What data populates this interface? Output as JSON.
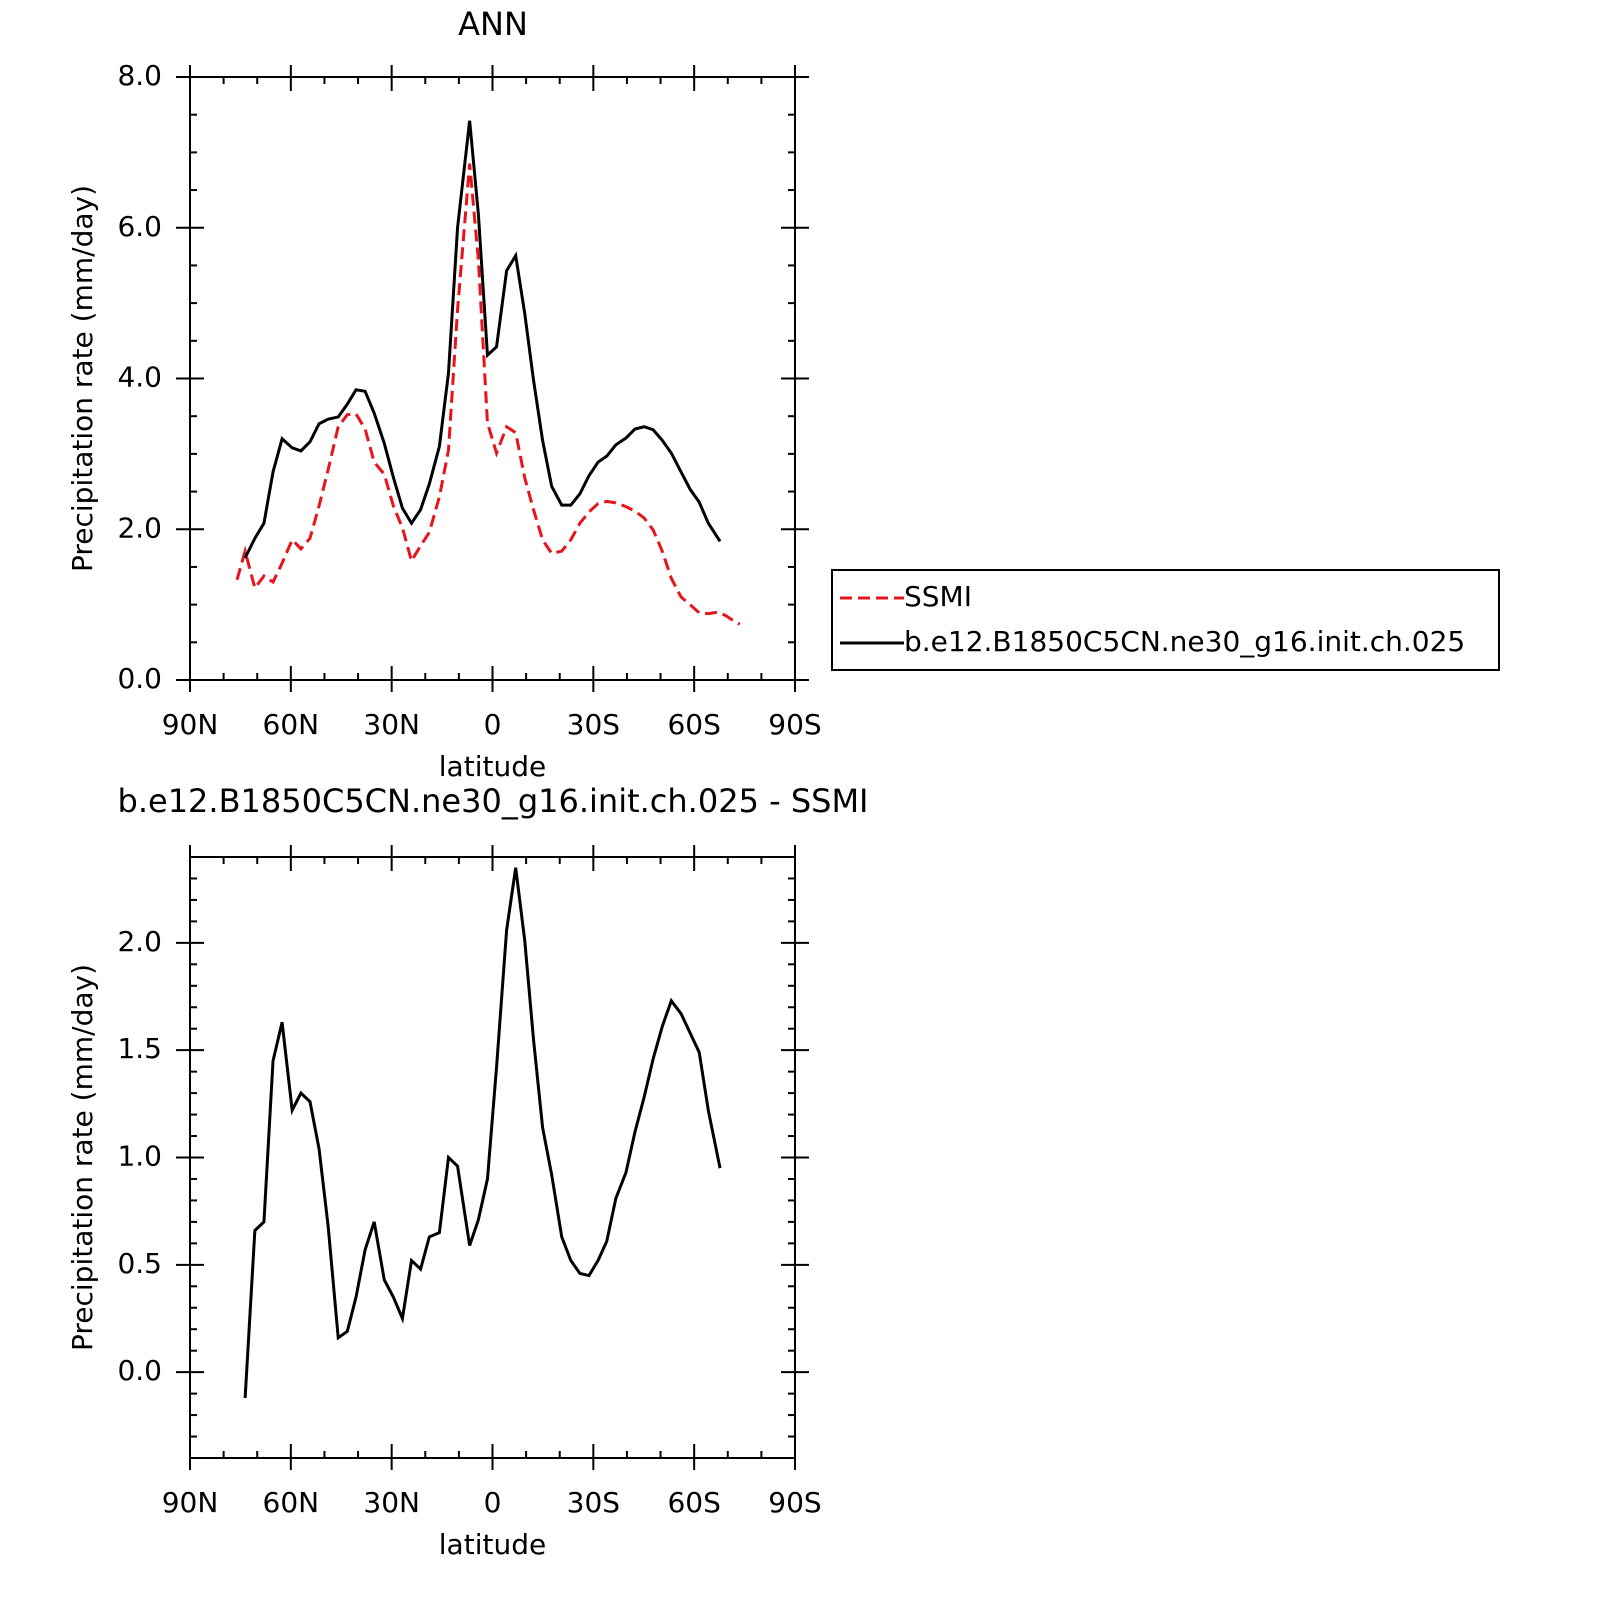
{
  "chart_data": [
    {
      "type": "line",
      "title": "ANN",
      "xlabel": "latitude",
      "ylabel": "Precipitation rate (mm/day)",
      "xlim": [
        90,
        -90
      ],
      "xticks": [
        {
          "value": 90,
          "label": "90N"
        },
        {
          "value": 60,
          "label": "60N"
        },
        {
          "value": 30,
          "label": "30N"
        },
        0,
        {
          "value": -30,
          "label": "30S"
        },
        {
          "value": -60,
          "label": "60S"
        },
        {
          "value": -90,
          "label": "90S"
        }
      ],
      "ylim": [
        0,
        8
      ],
      "yticks": [
        {
          "value": 0,
          "label": "0.0"
        },
        {
          "value": 2,
          "label": "2.0"
        },
        {
          "value": 4,
          "label": "4.0"
        },
        {
          "value": 6,
          "label": "6.0"
        },
        {
          "value": 8,
          "label": "8.0"
        }
      ],
      "legend": "right",
      "series": [
        {
          "name": "SSMI",
          "color": "#e8141c",
          "dash": true,
          "x": [
            76.0,
            73.6,
            70.7,
            68.0,
            65.3,
            62.6,
            59.6,
            57.0,
            54.3,
            51.6,
            48.9,
            45.9,
            43.2,
            40.6,
            37.9,
            35.2,
            32.2,
            29.5,
            26.8,
            24.1,
            21.4,
            18.8,
            15.8,
            13.1,
            10.4,
            6.8,
            4.2,
            1.5,
            -1.2,
            -4.2,
            -6.9,
            -9.6,
            -12.2,
            -14.9,
            -17.6,
            -20.6,
            -23.3,
            -26.0,
            -28.7,
            -31.4,
            -34.0,
            -36.7,
            -39.7,
            -42.4,
            -45.1,
            -47.8,
            -50.5,
            -53.2,
            -56.1,
            -58.8,
            -61.5,
            -64.2,
            -66.9,
            -69.2,
            -71.9,
            -73.6
          ],
          "values": [
            1.33,
            1.71,
            1.22,
            1.38,
            1.3,
            1.55,
            1.86,
            1.74,
            1.88,
            2.31,
            2.79,
            3.36,
            3.52,
            3.53,
            3.33,
            2.89,
            2.73,
            2.31,
            2.02,
            1.58,
            1.78,
            1.96,
            2.43,
            3.05,
            4.91,
            6.85,
            5.57,
            3.41,
            3.01,
            3.36,
            3.28,
            2.68,
            2.26,
            1.86,
            1.68,
            1.71,
            1.86,
            2.08,
            2.23,
            2.34,
            2.37,
            2.35,
            2.3,
            2.24,
            2.15,
            1.99,
            1.71,
            1.35,
            1.1,
            1.0,
            0.89,
            0.88,
            0.9,
            0.86,
            0.78,
            0.74
          ]
        },
        {
          "name": "b.e12.B1850C5CN.ne30_g16.init.ch.025",
          "color": "#000000",
          "dash": false,
          "x": [
            73.6,
            70.7,
            68.0,
            65.3,
            62.6,
            59.6,
            57.0,
            54.3,
            51.6,
            48.9,
            45.9,
            43.2,
            40.6,
            37.9,
            35.2,
            32.2,
            29.5,
            26.8,
            24.1,
            21.4,
            18.8,
            15.8,
            13.1,
            10.4,
            6.8,
            4.2,
            1.5,
            -1.2,
            -4.2,
            -6.9,
            -9.6,
            -12.2,
            -14.9,
            -17.6,
            -20.6,
            -23.3,
            -26.0,
            -28.7,
            -31.4,
            -34.0,
            -36.7,
            -39.7,
            -42.4,
            -45.1,
            -47.8,
            -50.5,
            -53.2,
            -56.1,
            -58.8,
            -61.5,
            -64.2,
            -67.7
          ],
          "values": [
            1.62,
            1.88,
            2.08,
            2.76,
            3.2,
            3.08,
            3.04,
            3.16,
            3.4,
            3.46,
            3.49,
            3.66,
            3.85,
            3.83,
            3.54,
            3.14,
            2.69,
            2.28,
            2.08,
            2.26,
            2.6,
            3.1,
            4.07,
            6.0,
            7.42,
            6.18,
            4.31,
            4.42,
            5.43,
            5.63,
            4.86,
            3.98,
            3.18,
            2.57,
            2.32,
            2.32,
            2.47,
            2.71,
            2.89,
            2.97,
            3.12,
            3.21,
            3.33,
            3.36,
            3.32,
            3.18,
            3.01,
            2.76,
            2.53,
            2.36,
            2.08,
            1.84
          ]
        }
      ]
    },
    {
      "type": "line",
      "title": "b.e12.B1850C5CN.ne30_g16.init.ch.025 - SSMI",
      "xlabel": "latitude",
      "ylabel": "Precipitation rate (mm/day)",
      "xlim": [
        90,
        -90
      ],
      "xticks": [
        {
          "value": 90,
          "label": "90N"
        },
        {
          "value": 60,
          "label": "60N"
        },
        {
          "value": 30,
          "label": "30N"
        },
        0,
        {
          "value": -30,
          "label": "30S"
        },
        {
          "value": -60,
          "label": "60S"
        },
        {
          "value": -90,
          "label": "90S"
        }
      ],
      "ylim": [
        -0.4,
        2.4
      ],
      "yticks": [
        {
          "value": 0,
          "label": "0.0"
        },
        0.5,
        {
          "value": 1,
          "label": "1.0"
        },
        1.5,
        {
          "value": 2,
          "label": "2.0"
        }
      ],
      "series": [
        {
          "color": "#000000",
          "dash": false,
          "x": [
            73.6,
            70.7,
            68.0,
            65.3,
            62.6,
            59.6,
            57.0,
            54.3,
            51.6,
            48.9,
            45.9,
            43.2,
            40.6,
            37.9,
            35.2,
            32.2,
            29.5,
            26.8,
            24.1,
            21.4,
            18.8,
            15.8,
            13.1,
            10.4,
            6.8,
            4.2,
            1.5,
            -1.2,
            -4.2,
            -6.9,
            -9.6,
            -12.2,
            -14.9,
            -17.6,
            -20.6,
            -23.3,
            -26.0,
            -28.7,
            -31.4,
            -34.0,
            -36.7,
            -39.7,
            -42.4,
            -45.1,
            -47.8,
            -50.5,
            -53.2,
            -56.1,
            -58.8,
            -61.5,
            -64.2,
            -67.7
          ],
          "values": [
            -0.12,
            0.66,
            0.7,
            1.45,
            1.63,
            1.22,
            1.3,
            1.26,
            1.04,
            0.68,
            0.16,
            0.19,
            0.35,
            0.57,
            0.7,
            0.43,
            0.35,
            0.25,
            0.52,
            0.48,
            0.63,
            0.65,
            1.0,
            0.96,
            0.59,
            0.71,
            0.9,
            1.42,
            2.06,
            2.35,
            2.01,
            1.55,
            1.14,
            0.92,
            0.63,
            0.52,
            0.46,
            0.45,
            0.52,
            0.61,
            0.81,
            0.93,
            1.12,
            1.28,
            1.46,
            1.61,
            1.73,
            1.67,
            1.58,
            1.49,
            1.22,
            0.95
          ]
        }
      ]
    }
  ]
}
